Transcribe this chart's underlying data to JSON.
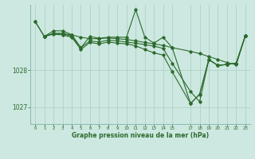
{
  "bg_color": "#cce8e0",
  "line_color": "#2d6a2d",
  "grid_color": "#aaccc4",
  "xlabel": "Graphe pression niveau de la mer (hPa)",
  "ylabel_ticks": [
    1027,
    1028
  ],
  "xlim": [
    -0.5,
    23.5
  ],
  "ylim": [
    1026.55,
    1029.75
  ],
  "xticks": [
    0,
    1,
    2,
    3,
    4,
    5,
    6,
    7,
    8,
    9,
    10,
    11,
    12,
    13,
    14,
    15,
    17,
    18,
    19,
    20,
    21,
    22,
    23
  ],
  "series1": [
    [
      0,
      1029.3
    ],
    [
      1,
      1028.9
    ],
    [
      2,
      1029.05
    ],
    [
      3,
      1029.05
    ],
    [
      4,
      1028.95
    ],
    [
      5,
      1028.6
    ],
    [
      6,
      1028.9
    ],
    [
      7,
      1028.85
    ],
    [
      8,
      1028.88
    ],
    [
      9,
      1028.88
    ],
    [
      10,
      1028.88
    ],
    [
      11,
      1029.62
    ],
    [
      12,
      1028.88
    ],
    [
      13,
      1028.72
    ],
    [
      14,
      1028.88
    ],
    [
      15,
      1028.6
    ],
    [
      17,
      1027.1
    ],
    [
      18,
      1027.35
    ],
    [
      19,
      1028.28
    ],
    [
      20,
      1028.12
    ],
    [
      21,
      1028.15
    ],
    [
      22,
      1028.18
    ],
    [
      23,
      1028.92
    ]
  ],
  "series2": [
    [
      0,
      1029.3
    ],
    [
      1,
      1028.9
    ],
    [
      2,
      1028.98
    ],
    [
      3,
      1028.98
    ],
    [
      4,
      1028.94
    ],
    [
      5,
      1028.88
    ],
    [
      6,
      1028.84
    ],
    [
      7,
      1028.84
    ],
    [
      8,
      1028.86
    ],
    [
      9,
      1028.84
    ],
    [
      10,
      1028.82
    ],
    [
      11,
      1028.78
    ],
    [
      12,
      1028.74
    ],
    [
      13,
      1028.7
    ],
    [
      14,
      1028.66
    ],
    [
      15,
      1028.6
    ],
    [
      17,
      1028.5
    ],
    [
      18,
      1028.44
    ],
    [
      19,
      1028.36
    ],
    [
      20,
      1028.28
    ],
    [
      21,
      1028.2
    ],
    [
      22,
      1028.14
    ],
    [
      23,
      1028.92
    ]
  ],
  "series3": [
    [
      1,
      1028.9
    ],
    [
      2,
      1028.98
    ],
    [
      3,
      1028.98
    ],
    [
      4,
      1028.9
    ],
    [
      5,
      1028.6
    ],
    [
      6,
      1028.78
    ],
    [
      7,
      1028.75
    ],
    [
      8,
      1028.8
    ],
    [
      9,
      1028.78
    ],
    [
      10,
      1028.75
    ],
    [
      11,
      1028.72
    ],
    [
      12,
      1028.68
    ],
    [
      13,
      1028.64
    ],
    [
      14,
      1028.58
    ],
    [
      15,
      1028.18
    ],
    [
      17,
      1027.42
    ],
    [
      18,
      1027.15
    ],
    [
      19,
      1028.28
    ],
    [
      20,
      1028.12
    ],
    [
      21,
      1028.15
    ],
    [
      22,
      1028.18
    ],
    [
      23,
      1028.92
    ]
  ],
  "series4": [
    [
      1,
      1028.9
    ],
    [
      2,
      1028.96
    ],
    [
      3,
      1028.94
    ],
    [
      4,
      1028.88
    ],
    [
      5,
      1028.55
    ],
    [
      6,
      1028.74
    ],
    [
      7,
      1028.7
    ],
    [
      8,
      1028.75
    ],
    [
      9,
      1028.72
    ],
    [
      10,
      1028.7
    ],
    [
      11,
      1028.65
    ],
    [
      12,
      1028.55
    ],
    [
      13,
      1028.46
    ],
    [
      14,
      1028.4
    ],
    [
      15,
      1027.95
    ],
    [
      17,
      1027.1
    ],
    [
      18,
      1027.35
    ],
    [
      19,
      1028.28
    ],
    [
      20,
      1028.12
    ],
    [
      21,
      1028.15
    ],
    [
      22,
      1028.18
    ],
    [
      23,
      1028.92
    ]
  ]
}
